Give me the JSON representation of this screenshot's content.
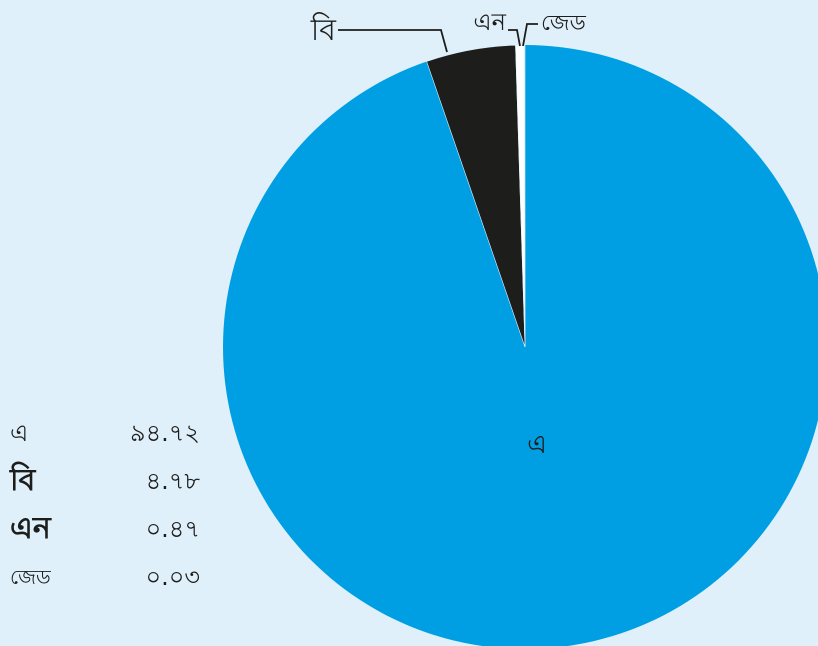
{
  "chart_data": {
    "type": "pie",
    "categories": [
      "এ",
      "বি",
      "এন",
      "জেড"
    ],
    "values": [
      94.72,
      4.78,
      0.47,
      0.03
    ],
    "value_labels": [
      "৯৪.৭২",
      "৪.৭৮",
      "০.৪৭",
      "০.০৩"
    ],
    "slice_labels": [
      "এ",
      "বি",
      "এন",
      "জেড"
    ],
    "colors": [
      "#009fe3",
      "#1d1d1b",
      "#ffffff",
      "#009fe3"
    ],
    "legend_position": "bottom-left",
    "start_angle_deg": 0,
    "direction": "clockwise"
  }
}
